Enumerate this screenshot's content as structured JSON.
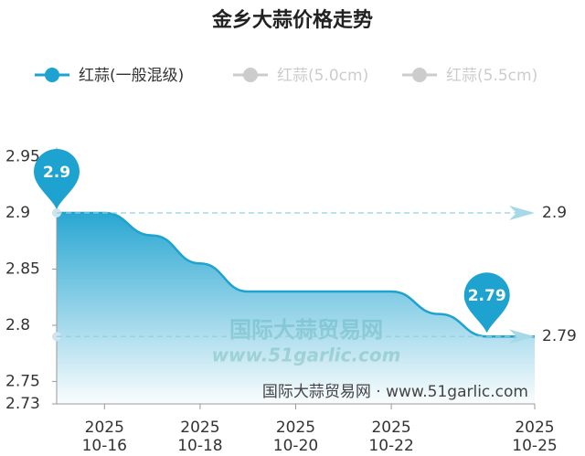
{
  "chart_data": {
    "type": "area",
    "title": "金乡大蒜价格走势",
    "x": [
      "2025-10-15",
      "2025-10-16",
      "2025-10-17",
      "2025-10-18",
      "2025-10-19",
      "2025-10-20",
      "2025-10-21",
      "2025-10-22",
      "2025-10-23",
      "2025-10-24",
      "2025-10-25"
    ],
    "series": [
      {
        "name": "红蒜(一般混级)",
        "color": "#1ea2cf",
        "visible": true,
        "values": [
          2.9,
          2.9,
          2.88,
          2.855,
          2.83,
          2.83,
          2.83,
          2.83,
          2.81,
          2.79,
          2.79
        ]
      },
      {
        "name": "红蒜(5.0cm)",
        "color": "#cccccc",
        "visible": false
      },
      {
        "name": "红蒜(5.5cm)",
        "color": "#cccccc",
        "visible": false
      }
    ],
    "ylim": [
      2.73,
      2.95
    ],
    "yticks": [
      2.73,
      2.75,
      2.8,
      2.85,
      2.9,
      2.95
    ],
    "xticks": [
      {
        "value": "2025-10-16",
        "label": [
          "2025",
          "10-16"
        ]
      },
      {
        "value": "2025-10-18",
        "label": [
          "2025",
          "10-18"
        ]
      },
      {
        "value": "2025-10-20",
        "label": [
          "2025",
          "10-20"
        ]
      },
      {
        "value": "2025-10-22",
        "label": [
          "2025",
          "10-22"
        ]
      },
      {
        "value": "2025-10-25",
        "label": [
          "2025",
          "10-25"
        ]
      }
    ],
    "mark_lines": [
      2.9,
      2.79
    ],
    "watermark": [
      "国际大蒜贸易网",
      "www.51garlic.com"
    ],
    "source": "国际大蒜贸易网 · www.51garlic.com"
  }
}
